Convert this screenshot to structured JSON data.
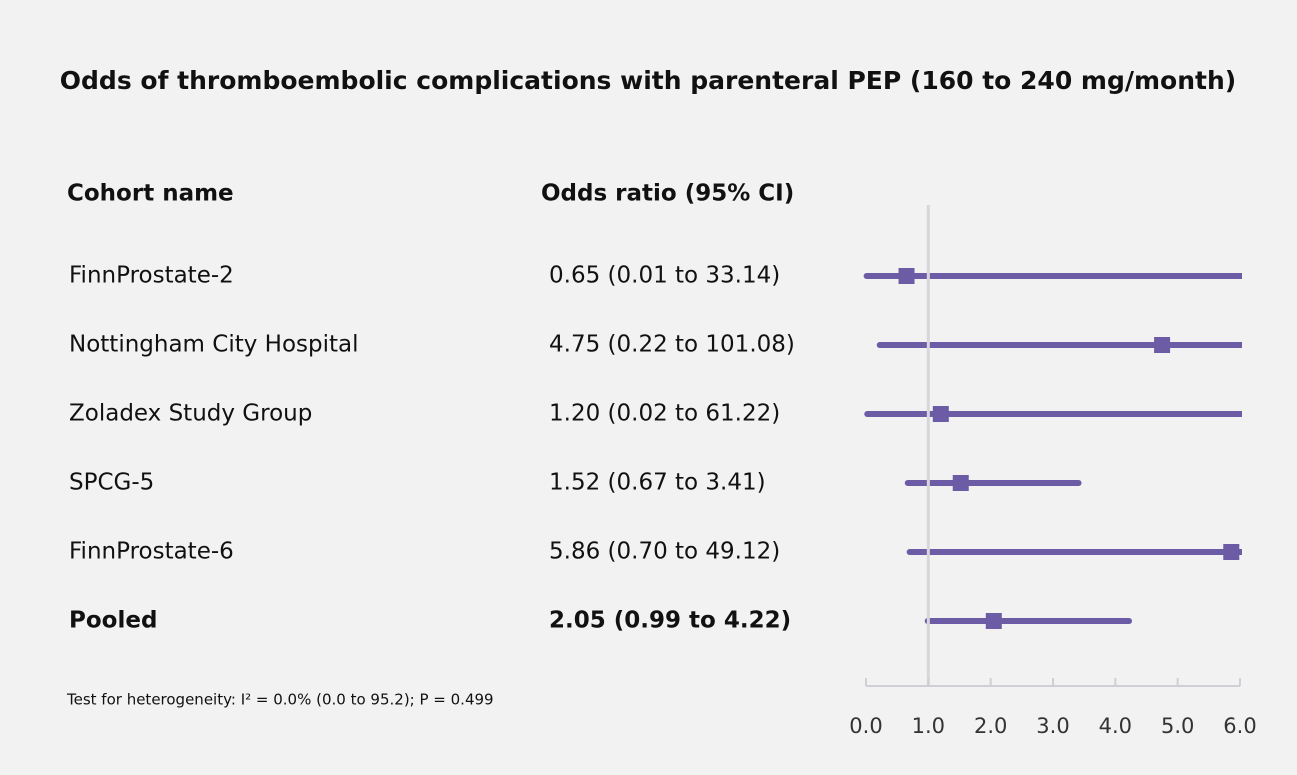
{
  "chart_data": {
    "type": "forest",
    "title": "Odds of thromboembolic complications with parenteral PEP (160 to 240 mg/month)",
    "column_headers": [
      "Cohort name",
      "Odds ratio (95% CI)"
    ],
    "categories": [
      "FinnProstate-2",
      "Nottingham City Hospital",
      "Zoladex Study Group",
      "SPCG-5",
      "FinnProstate-6"
    ],
    "values": [
      0.65,
      4.75,
      1.2,
      1.52,
      5.86
    ],
    "lower": [
      0.01,
      0.22,
      0.02,
      0.67,
      0.7
    ],
    "upper": [
      33.14,
      101.08,
      61.22,
      3.41,
      49.12
    ],
    "value_labels": [
      "0.65 (0.01 to 33.14)",
      "4.75 (0.22 to 101.08)",
      "1.20 (0.02 to 61.22)",
      "1.52 (0.67 to 3.41)",
      "5.86 (0.70 to 49.12)"
    ],
    "pooled": {
      "name": "Pooled",
      "value": 2.05,
      "lower": 0.99,
      "upper": 4.22,
      "value_label": "2.05 (0.99 to 4.22)"
    },
    "color": "#6b5ca5",
    "reference_line": 1,
    "xlim": [
      0,
      6
    ],
    "xticks": [
      {
        "value": 0,
        "label": "0.0"
      },
      {
        "value": 1,
        "label": "1.0"
      },
      {
        "value": 2,
        "label": "2.0"
      },
      {
        "value": 3,
        "label": "3.0"
      },
      {
        "value": 4,
        "label": "4.0"
      },
      {
        "value": 5,
        "label": "5.0"
      },
      {
        "value": 6,
        "label": "6.0"
      }
    ],
    "footnote": "Test for heterogeneity: I² = 0.0% (0.0 to 95.2); P = 0.499"
  }
}
